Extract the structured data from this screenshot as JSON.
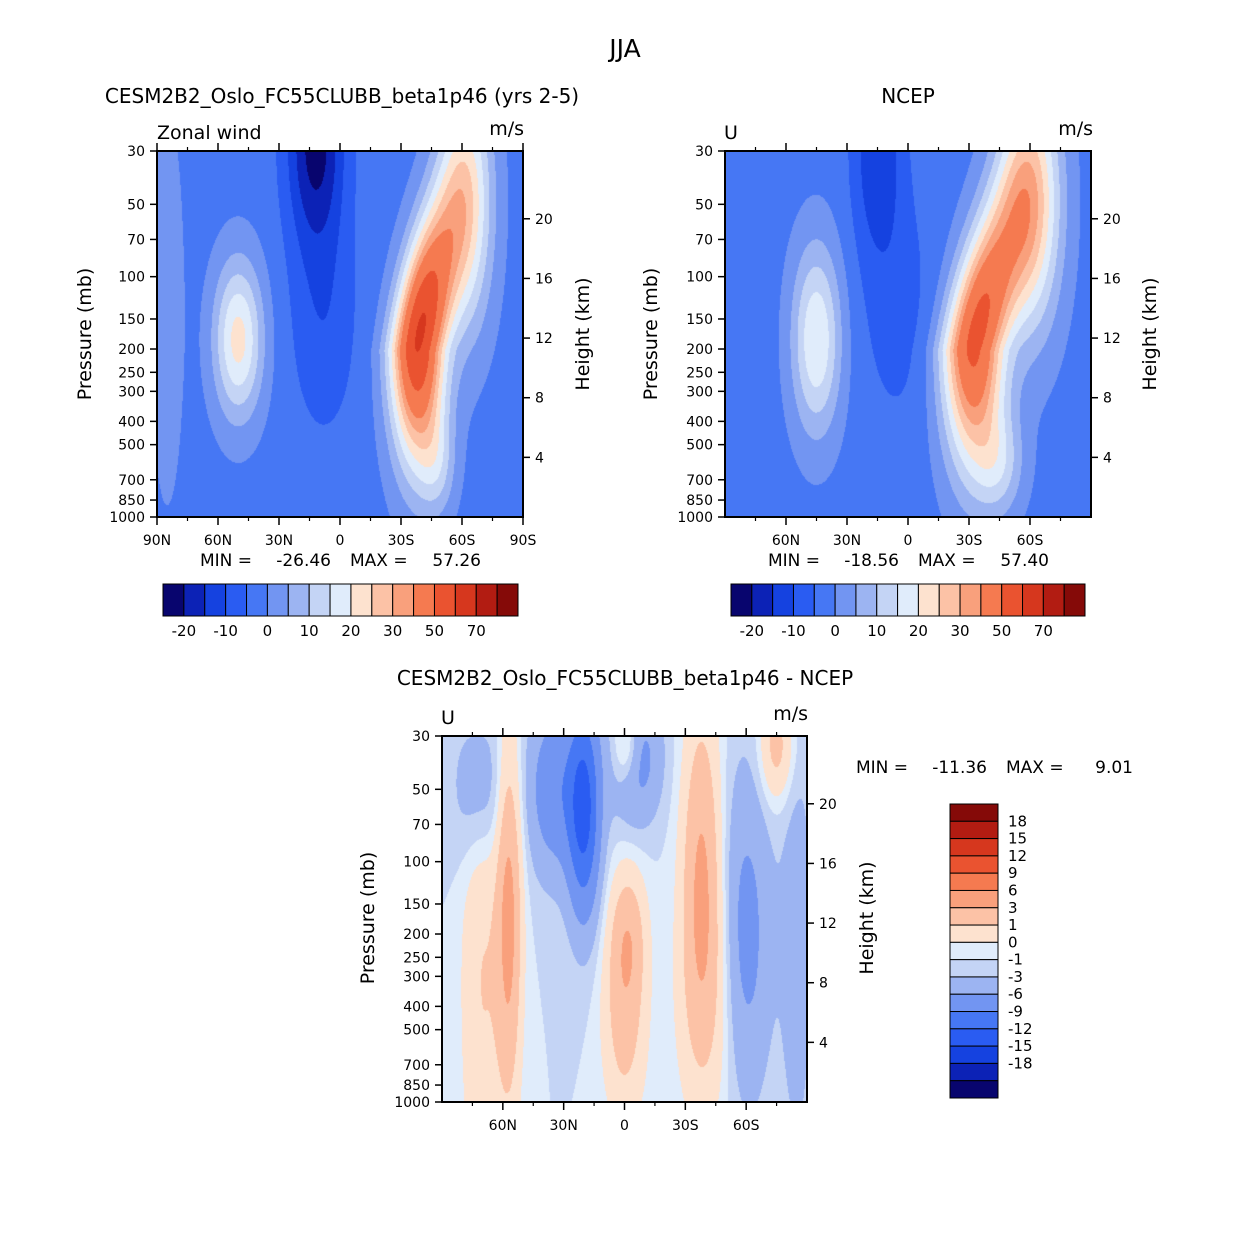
{
  "figure": {
    "title": "JJA"
  },
  "chart_data": [
    {
      "type": "heatmap",
      "id": "model",
      "title": "CESM2B2_Oslo_FC55CLUBB_beta1p46 (yrs 2-5)",
      "subtitle_left": "Zonal wind",
      "units": "m/s",
      "ylabel": "Pressure (mb)",
      "ylabel_right": "Height (km)",
      "x_ticks": [
        "90N",
        "60N",
        "30N",
        "0",
        "30S",
        "60S",
        "90S"
      ],
      "x_tick_values": [
        90,
        60,
        30,
        0,
        -30,
        -60,
        -90
      ],
      "xlim": [
        90,
        -90
      ],
      "y_ticks": [
        "30",
        "50",
        "70",
        "100",
        "150",
        "200",
        "250",
        "300",
        "400",
        "500",
        "700",
        "850",
        "1000"
      ],
      "y_tick_values": [
        30,
        50,
        70,
        100,
        150,
        200,
        250,
        300,
        400,
        500,
        700,
        850,
        1000
      ],
      "ylim": [
        1000,
        30
      ],
      "height_ticks": [
        "20",
        "16",
        "12",
        "8",
        "4"
      ],
      "height_tick_values": [
        20,
        16,
        12,
        8,
        4
      ],
      "min_label": "MIN =",
      "min": "-26.46",
      "max_label": "MAX =",
      "max": "57.26",
      "jets": [
        {
          "lat": 15,
          "p": 30,
          "value": -26
        },
        {
          "lat": 50,
          "p": 200,
          "value": 17
        },
        {
          "lat": -40,
          "p": 200,
          "value": 57
        },
        {
          "lat": -55,
          "p": 40,
          "value": 45
        }
      ],
      "colorbar": {
        "levels": [
          "-20",
          "-10",
          "0",
          "10",
          "20",
          "30",
          "50",
          "70"
        ],
        "level_values": [
          -20,
          -10,
          0,
          10,
          20,
          30,
          50,
          70
        ],
        "n_bins": 16,
        "colors": [
          "#08056e",
          "#0c22b6",
          "#1542e0",
          "#2a5cf2",
          "#4677f4",
          "#7295f2",
          "#9cb4f2",
          "#c4d4f5",
          "#e0ecfb",
          "#fde2cf",
          "#fcc2a6",
          "#f9a07c",
          "#f57a50",
          "#ea5330",
          "#d6371e",
          "#b21c12",
          "#850a08"
        ]
      }
    },
    {
      "type": "heatmap",
      "id": "obs",
      "title": "NCEP",
      "subtitle_left": "U",
      "units": "m/s",
      "ylabel": "Pressure (mb)",
      "ylabel_right": "Height (km)",
      "x_ticks": [
        "60N",
        "30N",
        "0",
        "30S",
        "60S"
      ],
      "x_tick_values": [
        60,
        30,
        0,
        -30,
        -60
      ],
      "xlim": [
        90,
        -90
      ],
      "y_ticks": [
        "30",
        "50",
        "70",
        "100",
        "150",
        "200",
        "250",
        "300",
        "400",
        "500",
        "700",
        "850",
        "1000"
      ],
      "y_tick_values": [
        30,
        50,
        70,
        100,
        150,
        200,
        250,
        300,
        400,
        500,
        700,
        850,
        1000
      ],
      "ylim": [
        1000,
        30
      ],
      "height_ticks": [
        "20",
        "16",
        "12",
        "8",
        "4"
      ],
      "height_tick_values": [
        20,
        16,
        12,
        8,
        4
      ],
      "min_label": "MIN =",
      "min": "-18.56",
      "max_label": "MAX =",
      "max": "57.40",
      "jets": [
        {
          "lat": 15,
          "p": 30,
          "value": -18
        },
        {
          "lat": 45,
          "p": 200,
          "value": 15
        },
        {
          "lat": -30,
          "p": 200,
          "value": 57
        },
        {
          "lat": -60,
          "p": 40,
          "value": 50
        }
      ],
      "colorbar": {
        "levels": [
          "-20",
          "-10",
          "0",
          "10",
          "20",
          "30",
          "50",
          "70"
        ],
        "level_values": [
          -20,
          -10,
          0,
          10,
          20,
          30,
          50,
          70
        ],
        "n_bins": 16,
        "colors": [
          "#08056e",
          "#0c22b6",
          "#1542e0",
          "#2a5cf2",
          "#4677f4",
          "#7295f2",
          "#9cb4f2",
          "#c4d4f5",
          "#e0ecfb",
          "#fde2cf",
          "#fcc2a6",
          "#f9a07c",
          "#f57a50",
          "#ea5330",
          "#d6371e",
          "#b21c12",
          "#850a08"
        ]
      }
    },
    {
      "type": "heatmap",
      "id": "diff",
      "title": "CESM2B2_Oslo_FC55CLUBB_beta1p46 - NCEP",
      "subtitle_left": "U",
      "units": "m/s",
      "ylabel": "Pressure (mb)",
      "ylabel_right": "Height (km)",
      "x_ticks": [
        "60N",
        "30N",
        "0",
        "30S",
        "60S"
      ],
      "x_tick_values": [
        60,
        30,
        0,
        -30,
        -60
      ],
      "xlim": [
        90,
        -90
      ],
      "y_ticks": [
        "30",
        "50",
        "70",
        "100",
        "150",
        "200",
        "250",
        "300",
        "400",
        "500",
        "700",
        "850",
        "1000"
      ],
      "y_tick_values": [
        30,
        50,
        70,
        100,
        150,
        200,
        250,
        300,
        400,
        500,
        700,
        850,
        1000
      ],
      "ylim": [
        1000,
        30
      ],
      "height_ticks": [
        "20",
        "16",
        "12",
        "8",
        "4"
      ],
      "height_tick_values": [
        20,
        16,
        12,
        8,
        4
      ],
      "min_label": "MIN =",
      "min": "-11.36",
      "max_label": "MAX =",
      "max": "9.01",
      "colorbar": {
        "orientation": "vertical",
        "levels": [
          "18",
          "15",
          "12",
          "9",
          "6",
          "3",
          "1",
          "0",
          "-1",
          "-3",
          "-6",
          "-9",
          "-12",
          "-15",
          "-18"
        ],
        "colors": [
          "#850a08",
          "#b21c12",
          "#d6371e",
          "#ea5330",
          "#f57a50",
          "#f9a07c",
          "#fcc2a6",
          "#fde2cf",
          "#e0ecfb",
          "#c4d4f5",
          "#9cb4f2",
          "#7295f2",
          "#4677f4",
          "#2a5cf2",
          "#1542e0",
          "#0c22b6",
          "#08056e"
        ]
      }
    }
  ]
}
